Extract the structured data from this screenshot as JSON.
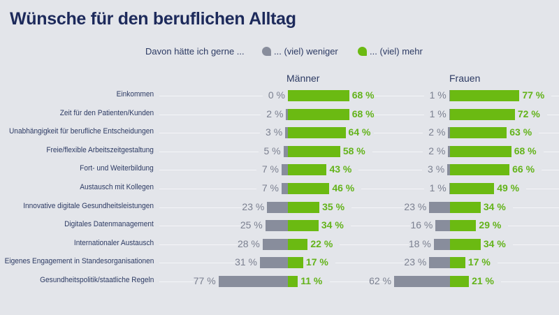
{
  "chart_data": {
    "type": "bar",
    "subtype": "diverging-horizontal-bar",
    "title": "Wünsche für den beruflichen Alltag",
    "legend": {
      "lead": "Davon hätte ich gerne ...",
      "placement": "top-right",
      "entries": [
        {
          "key": "less",
          "label": "... (viel) weniger",
          "color": "#888d9c"
        },
        {
          "key": "more",
          "label": "... (viel) mehr",
          "color": "#6bba12"
        }
      ]
    },
    "unit": "%",
    "categories": [
      "Einkommen",
      "Zeit für den Patienten/Kunden",
      "Unabhängigkeit für berufliche Entscheidungen",
      "Freie/flexible Arbeitszeitgestaltung",
      "Fort- und Weiterbildung",
      "Austausch mit Kollegen",
      "Innovative digitale Gesundheitsleistungen",
      "Digitales Datenmanagement",
      "Internationaler Austausch",
      "Eigenes Engagement in Standesorganisationen",
      "Gesundheitspolitik/staatliche Regeln"
    ],
    "panels": [
      {
        "name": "Männer",
        "series": [
          {
            "name": "... (viel) weniger",
            "values": [
              0,
              2,
              3,
              5,
              7,
              7,
              23,
              25,
              28,
              31,
              77
            ]
          },
          {
            "name": "... (viel) mehr",
            "values": [
              68,
              68,
              64,
              58,
              43,
              46,
              35,
              34,
              22,
              17,
              11
            ]
          }
        ]
      },
      {
        "name": "Frauen",
        "series": [
          {
            "name": "... (viel) weniger",
            "values": [
              1,
              1,
              2,
              2,
              3,
              1,
              23,
              16,
              18,
              23,
              62
            ]
          },
          {
            "name": "... (viel) mehr",
            "values": [
              77,
              72,
              63,
              68,
              66,
              49,
              34,
              29,
              34,
              17,
              21
            ]
          }
        ]
      }
    ],
    "xlim": [
      -80,
      80
    ],
    "grid": false
  }
}
